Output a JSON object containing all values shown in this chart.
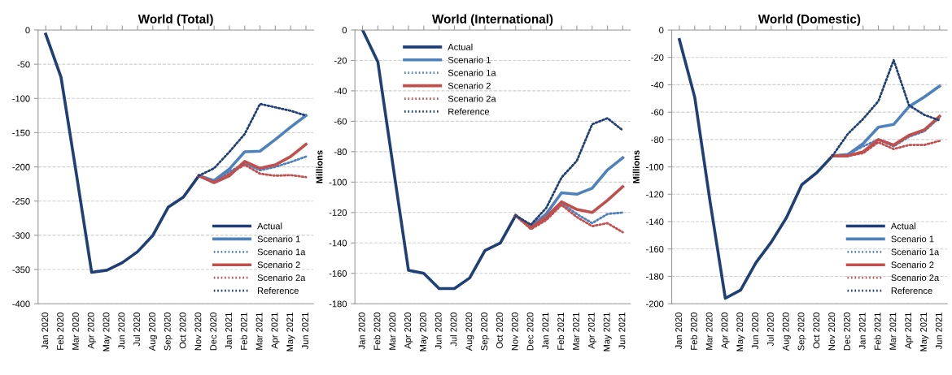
{
  "chart_data": [
    {
      "type": "line",
      "title": "World (Total)",
      "categories": [
        "Jan 2020",
        "Feb 2020",
        "Mar 2020",
        "Apr 2020",
        "May 2020",
        "Jun 2020",
        "Jul 2020",
        "Aug 2020",
        "Sep 2020",
        "Oct 2020",
        "Nov 2020",
        "Dec 2020",
        "Jan 2021",
        "Feb 2021",
        "Mar 2021",
        "Apr 2021",
        "May 2021",
        "Jun 2021"
      ],
      "ylim": [
        -400,
        0
      ],
      "yticks": [
        -400,
        -350,
        -300,
        -250,
        -200,
        -150,
        -100,
        -50,
        0
      ],
      "grid": "y",
      "legend": "bottom right",
      "series": [
        {
          "name": "Actual",
          "color": "#1f3f77",
          "line_style": "solid",
          "values": [
            -6,
            -69,
            -210,
            -354,
            -351,
            -340,
            -324,
            -300,
            -259,
            -244,
            -213,
            null,
            null,
            null,
            null,
            null,
            null,
            null
          ]
        },
        {
          "name": "Scenario 1",
          "color": "#4f81bd",
          "line_style": "solid",
          "values": [
            null,
            null,
            null,
            null,
            null,
            null,
            null,
            null,
            null,
            null,
            -213,
            -220,
            -203,
            -178,
            -177,
            -160,
            -142,
            -125
          ]
        },
        {
          "name": "Scenario 1a",
          "color": "#4f81bd",
          "line_style": "dotted",
          "values": [
            null,
            null,
            null,
            null,
            null,
            null,
            null,
            null,
            null,
            null,
            -213,
            -222,
            -207,
            -195,
            -205,
            -200,
            -193,
            -185
          ]
        },
        {
          "name": "Scenario 2",
          "color": "#c0504d",
          "line_style": "solid",
          "values": [
            null,
            null,
            null,
            null,
            null,
            null,
            null,
            null,
            null,
            null,
            -213,
            -223,
            -213,
            -192,
            -202,
            -197,
            -185,
            -167
          ]
        },
        {
          "name": "Scenario 2a",
          "color": "#c0504d",
          "line_style": "dotted",
          "values": [
            null,
            null,
            null,
            null,
            null,
            null,
            null,
            null,
            null,
            null,
            -213,
            -223,
            -210,
            -197,
            -210,
            -213,
            -212,
            -215
          ]
        },
        {
          "name": "Reference",
          "color": "#1f3f77",
          "line_style": "dotted",
          "values": [
            null,
            null,
            null,
            null,
            null,
            null,
            null,
            null,
            null,
            null,
            -213,
            -202,
            -178,
            -152,
            -108,
            -113,
            -118,
            -125
          ]
        }
      ]
    },
    {
      "type": "line",
      "title": "World (International)",
      "ylabel": "Millions",
      "categories": [
        "Jan 2020",
        "Feb 2020",
        "Mar 2020",
        "Apr 2020",
        "May 2020",
        "Jun 2020",
        "Jul 2020",
        "Aug 2020",
        "Sep 2020",
        "Oct 2020",
        "Nov 2020",
        "Dec 2020",
        "Jan 2021",
        "Feb 2021",
        "Mar 2021",
        "Apr 2021",
        "May 2021",
        "Jun 2021"
      ],
      "ylim": [
        -180,
        0
      ],
      "yticks": [
        -180,
        -160,
        -140,
        -120,
        -100,
        -80,
        -60,
        -40,
        -20,
        0
      ],
      "grid": "y",
      "legend": "top left",
      "series": [
        {
          "name": "Actual",
          "color": "#1f3f77",
          "line_style": "solid",
          "values": [
            0,
            -21,
            -90,
            -158,
            -160,
            -170,
            -170,
            -163,
            -145,
            -140,
            -122,
            null,
            null,
            null,
            null,
            null,
            null,
            null
          ]
        },
        {
          "name": "Scenario 1",
          "color": "#4f81bd",
          "line_style": "solid",
          "values": [
            null,
            null,
            null,
            null,
            null,
            null,
            null,
            null,
            null,
            null,
            -122,
            -129,
            -121,
            -107,
            -108,
            -104,
            -92,
            -84
          ]
        },
        {
          "name": "Scenario 1a",
          "color": "#4f81bd",
          "line_style": "dotted",
          "values": [
            null,
            null,
            null,
            null,
            null,
            null,
            null,
            null,
            null,
            null,
            -122,
            -130,
            -124,
            -114,
            -121,
            -127,
            -121,
            -120
          ]
        },
        {
          "name": "Scenario 2",
          "color": "#c0504d",
          "line_style": "solid",
          "values": [
            null,
            null,
            null,
            null,
            null,
            null,
            null,
            null,
            null,
            null,
            -122,
            -130,
            -123,
            -113,
            -118,
            -120,
            -112,
            -103
          ]
        },
        {
          "name": "Scenario 2a",
          "color": "#c0504d",
          "line_style": "dotted",
          "values": [
            null,
            null,
            null,
            null,
            null,
            null,
            null,
            null,
            null,
            null,
            -122,
            -131,
            -125,
            -115,
            -123,
            -129,
            -127,
            -133
          ]
        },
        {
          "name": "Reference",
          "color": "#1f3f77",
          "line_style": "dotted",
          "values": [
            null,
            null,
            null,
            null,
            null,
            null,
            null,
            null,
            null,
            null,
            -122,
            -128,
            -117,
            -97,
            -86,
            -62,
            -58,
            -66
          ]
        }
      ]
    },
    {
      "type": "line",
      "title": "World (Domestic)",
      "ylabel": "Millions",
      "categories": [
        "Jan 2020",
        "Feb 2020",
        "Mar 2020",
        "Apr 2020",
        "May 2020",
        "Jun 2020",
        "Jul 2020",
        "Aug 2020",
        "Sep 2020",
        "Oct 2020",
        "Nov 2020",
        "Dec 2020",
        "Jan 2021",
        "Feb 2021",
        "Mar 2021",
        "Apr 2021",
        "May 2021",
        "Jun 2021"
      ],
      "ylim": [
        -200,
        0
      ],
      "yticks": [
        -200,
        -180,
        -160,
        -140,
        -120,
        -100,
        -80,
        -60,
        -40,
        -20,
        0
      ],
      "grid": "y",
      "legend": "bottom right",
      "series": [
        {
          "name": "Actual",
          "color": "#1f3f77",
          "line_style": "solid",
          "values": [
            -7,
            -49,
            -125,
            -196,
            -190,
            -170,
            -155,
            -137,
            -113,
            -104,
            -92,
            null,
            null,
            null,
            null,
            null,
            null,
            null
          ]
        },
        {
          "name": "Scenario 1",
          "color": "#4f81bd",
          "line_style": "solid",
          "values": [
            null,
            null,
            null,
            null,
            null,
            null,
            null,
            null,
            null,
            null,
            -92,
            -91,
            -83,
            -71,
            -69,
            -56,
            -49,
            -41
          ]
        },
        {
          "name": "Scenario 1a",
          "color": "#4f81bd",
          "line_style": "dotted",
          "values": [
            null,
            null,
            null,
            null,
            null,
            null,
            null,
            null,
            null,
            null,
            -92,
            -91,
            -85,
            -80,
            -85,
            -78,
            -74,
            -64
          ]
        },
        {
          "name": "Scenario 2",
          "color": "#c0504d",
          "line_style": "solid",
          "values": [
            null,
            null,
            null,
            null,
            null,
            null,
            null,
            null,
            null,
            null,
            -92,
            -92,
            -89,
            -80,
            -84,
            -77,
            -73,
            -63
          ]
        },
        {
          "name": "Scenario 2a",
          "color": "#c0504d",
          "line_style": "dotted",
          "values": [
            null,
            null,
            null,
            null,
            null,
            null,
            null,
            null,
            null,
            null,
            -92,
            -92,
            -90,
            -82,
            -87,
            -84,
            -84,
            -81
          ]
        },
        {
          "name": "Reference",
          "color": "#1f3f77",
          "line_style": "dotted",
          "values": [
            null,
            null,
            null,
            null,
            null,
            null,
            null,
            null,
            null,
            null,
            -92,
            -76,
            -65,
            -52,
            -22,
            -55,
            -62,
            -66
          ]
        }
      ]
    }
  ]
}
